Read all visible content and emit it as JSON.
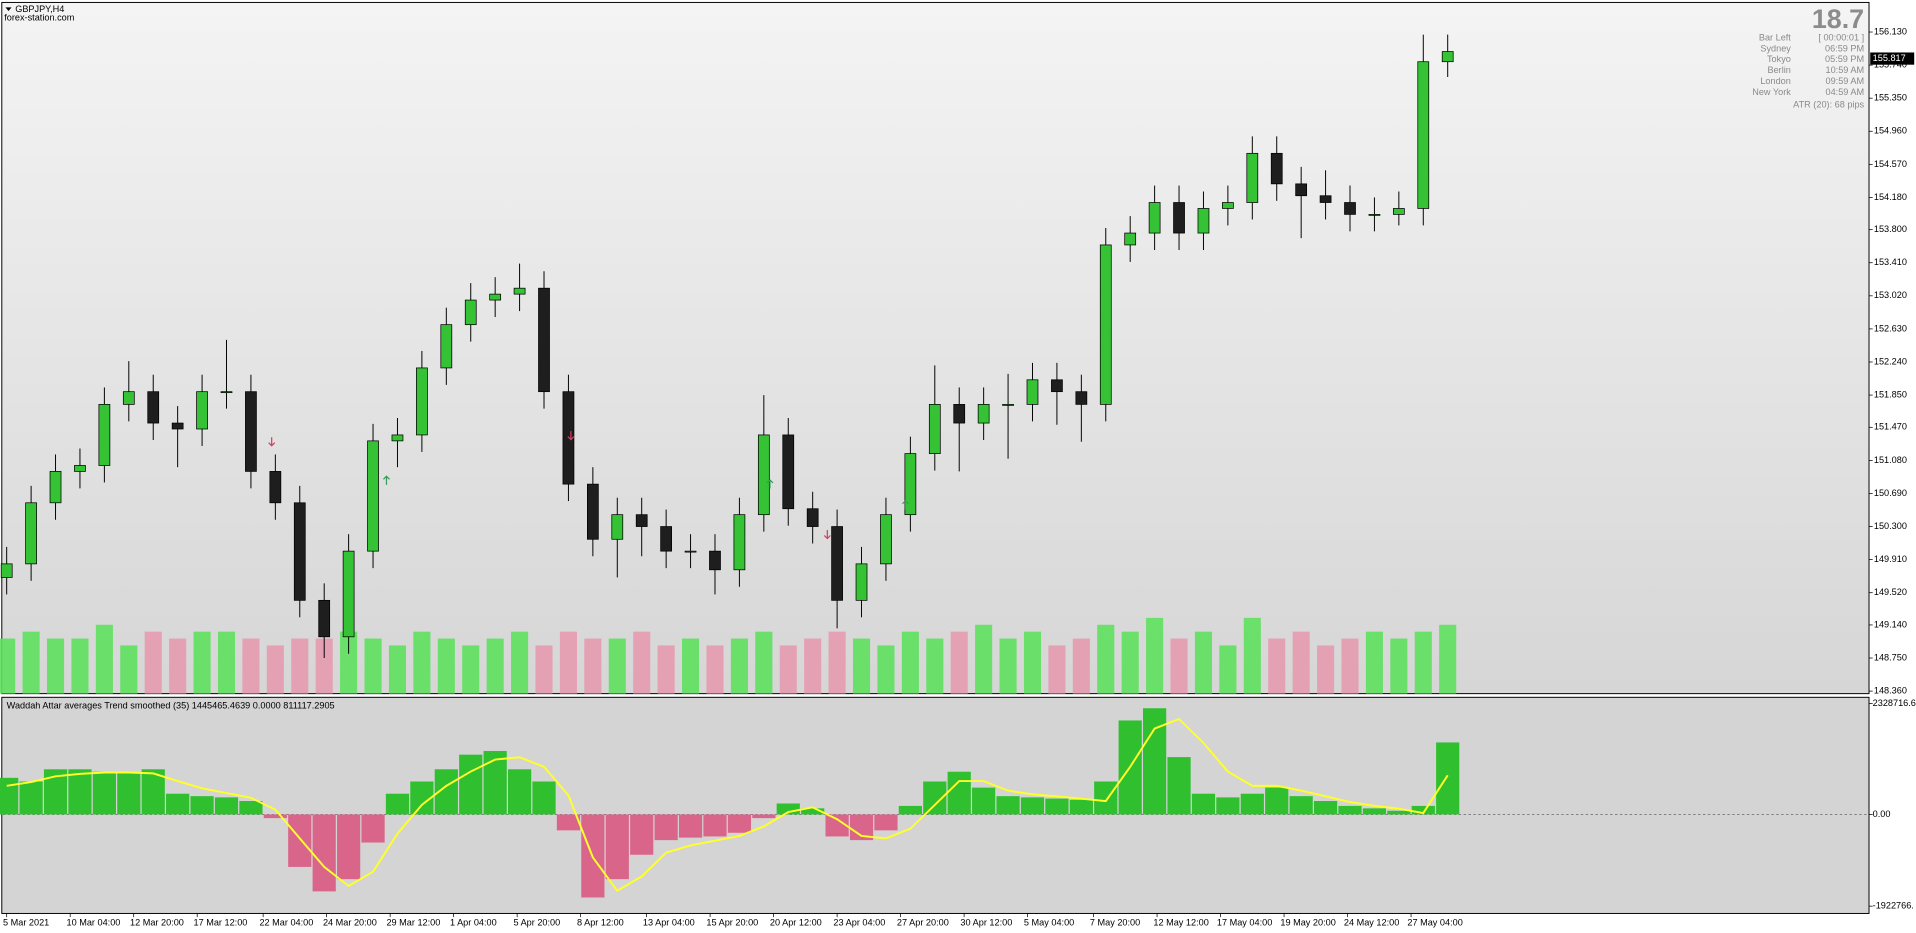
{
  "header": {
    "symbol": "GBPJPY,H4",
    "source": "forex-station.com"
  },
  "info_panel": {
    "spread": "18.7",
    "rows": [
      [
        "Bar Left",
        "[ 00:00:01 ]"
      ],
      [
        "Sydney",
        "06:59 PM"
      ],
      [
        "Tokyo",
        "05:59 PM"
      ],
      [
        "Berlin",
        "10:59 AM"
      ],
      [
        "London",
        "09:59 AM"
      ],
      [
        "New York",
        "04:59 AM"
      ]
    ],
    "atr": "ATR (20): 68 pips"
  },
  "chart_data": [
    {
      "type": "candlestick",
      "x": [
        0,
        1,
        2,
        3,
        4,
        5,
        6,
        7,
        8,
        9,
        10,
        11,
        12,
        13,
        14,
        15,
        16,
        17,
        18,
        19,
        20,
        21,
        22,
        23,
        24,
        25,
        26,
        27,
        28,
        29,
        30,
        31,
        32,
        33,
        34,
        35,
        36,
        37,
        38,
        39,
        40,
        41,
        42,
        43,
        44,
        45,
        46,
        47,
        48,
        49,
        50,
        51,
        52,
        53,
        54,
        55,
        56,
        57,
        58,
        59
      ],
      "open": [
        149.7,
        149.86,
        150.58,
        150.95,
        151.02,
        151.74,
        151.89,
        151.52,
        151.45,
        151.89,
        151.89,
        150.95,
        150.58,
        149.43,
        149.0,
        150.01,
        151.31,
        151.38,
        152.17,
        152.68,
        152.97,
        153.04,
        153.11,
        151.89,
        150.8,
        150.15,
        150.44,
        150.3,
        150.01,
        150.01,
        149.79,
        150.44,
        151.38,
        150.51,
        150.3,
        149.43,
        149.86,
        150.44,
        151.16,
        151.74,
        151.52,
        151.74,
        151.74,
        152.03,
        151.89,
        151.74,
        153.62,
        153.76,
        154.12,
        153.76,
        154.05,
        154.12,
        154.7,
        154.34,
        154.2,
        154.12,
        153.98,
        153.98,
        154.05,
        155.78
      ],
      "high": [
        150.06,
        150.78,
        151.15,
        151.22,
        151.94,
        152.25,
        152.09,
        151.72,
        152.09,
        152.5,
        152.09,
        151.15,
        150.78,
        149.63,
        150.21,
        151.51,
        151.58,
        152.37,
        152.88,
        153.17,
        153.24,
        153.4,
        153.31,
        152.09,
        151.0,
        150.64,
        150.64,
        150.5,
        150.21,
        150.21,
        150.64,
        151.85,
        151.58,
        150.71,
        150.5,
        150.06,
        150.64,
        151.36,
        152.2,
        151.94,
        151.94,
        152.1,
        152.23,
        152.23,
        152.09,
        153.82,
        153.96,
        154.32,
        154.32,
        154.25,
        154.32,
        154.9,
        154.9,
        154.54,
        154.5,
        154.32,
        154.18,
        154.25,
        156.1,
        156.1
      ],
      "low": [
        149.5,
        149.66,
        150.38,
        150.75,
        150.82,
        151.54,
        151.32,
        151.0,
        151.25,
        151.69,
        150.75,
        150.38,
        149.23,
        148.75,
        148.8,
        149.81,
        151.0,
        151.18,
        151.97,
        152.48,
        152.77,
        152.84,
        151.69,
        150.6,
        149.95,
        149.7,
        149.95,
        149.81,
        149.81,
        149.5,
        149.59,
        150.24,
        150.31,
        150.1,
        149.1,
        149.23,
        149.66,
        150.24,
        150.96,
        150.95,
        151.32,
        151.1,
        151.54,
        151.5,
        151.3,
        151.54,
        153.42,
        153.56,
        153.56,
        153.56,
        153.85,
        153.92,
        154.14,
        153.7,
        153.92,
        153.78,
        153.78,
        153.85,
        153.85,
        155.6
      ],
      "close": [
        149.86,
        150.58,
        150.95,
        151.02,
        151.74,
        151.89,
        151.52,
        151.45,
        151.89,
        151.89,
        150.95,
        150.58,
        149.43,
        149.0,
        150.01,
        151.31,
        151.38,
        152.17,
        152.68,
        152.97,
        153.04,
        153.11,
        151.89,
        150.8,
        150.15,
        150.44,
        150.3,
        150.01,
        150.01,
        149.79,
        150.44,
        151.38,
        150.51,
        150.3,
        149.43,
        149.86,
        150.44,
        151.16,
        151.74,
        151.52,
        151.74,
        151.74,
        152.03,
        151.89,
        151.74,
        153.62,
        153.76,
        154.12,
        153.76,
        154.05,
        154.12,
        154.7,
        154.34,
        154.2,
        154.12,
        153.98,
        153.98,
        154.05,
        155.78,
        155.9
      ],
      "volume": [
        8,
        9,
        8,
        8,
        10,
        7,
        9,
        8,
        9,
        9,
        8,
        7,
        8,
        8,
        9,
        8,
        7,
        9,
        8,
        7,
        8,
        9,
        7,
        9,
        8,
        8,
        9,
        7,
        8,
        7,
        8,
        9,
        7,
        8,
        9,
        8,
        7,
        9,
        8,
        9,
        10,
        8,
        9,
        7,
        8,
        10,
        9,
        11,
        8,
        9,
        7,
        11,
        8,
        9,
        7,
        8,
        9,
        8,
        9,
        10
      ],
      "up_color": "#35c335",
      "down_color": "#1e1e1e",
      "volume_up_color": "#5ee05e",
      "volume_down_color": "#e79bb0",
      "xlim": [
        -0.15,
        76.25
      ],
      "ylim": [
        148.33,
        156.45
      ],
      "y2lim": [
        0,
        100
      ],
      "yticks": [
        {
          "value": 156.13,
          "label": "156.130"
        },
        {
          "value": 155.74,
          "label": "155.740"
        },
        {
          "value": 155.35,
          "label": "155.350"
        },
        {
          "value": 154.96,
          "label": "154.960"
        },
        {
          "value": 154.57,
          "label": "154.570"
        },
        {
          "value": 154.18,
          "label": "154.180"
        },
        {
          "value": 153.8,
          "label": "153.800"
        },
        {
          "value": 153.41,
          "label": "153.410"
        },
        {
          "value": 153.02,
          "label": "153.020"
        },
        {
          "value": 152.63,
          "label": "152.630"
        },
        {
          "value": 152.24,
          "label": "152.240"
        },
        {
          "value": 151.85,
          "label": "151.850"
        },
        {
          "value": 151.47,
          "label": "151.470"
        },
        {
          "value": 151.08,
          "label": "151.080"
        },
        {
          "value": 150.69,
          "label": "150.690"
        },
        {
          "value": 150.3,
          "label": "150.300"
        },
        {
          "value": 149.91,
          "label": "149.910"
        },
        {
          "value": 149.52,
          "label": "149.520"
        },
        {
          "value": 149.14,
          "label": "149.140"
        },
        {
          "value": 148.75,
          "label": "148.750"
        },
        {
          "value": 148.36,
          "label": "148.360"
        }
      ],
      "last_price": 155.817,
      "grid": false
    },
    {
      "type": "histogram",
      "title": "Waddah Attar averages Trend smoothed  (35) 1445465.4639 0.0000 811117.2905",
      "x": [
        0,
        1,
        2,
        3,
        4,
        5,
        6,
        7,
        8,
        9,
        10,
        11,
        12,
        13,
        14,
        15,
        16,
        17,
        18,
        19,
        20,
        21,
        22,
        23,
        24,
        25,
        26,
        27,
        28,
        29,
        30,
        31,
        32,
        33,
        34,
        35,
        36,
        37,
        38,
        39,
        40,
        41,
        42,
        43,
        44,
        45,
        46,
        47,
        48,
        49,
        50,
        51,
        52,
        53,
        54,
        55,
        56,
        57,
        58,
        59
      ],
      "values": [
        768000,
        691000,
        947000,
        947000,
        896000,
        870000,
        947000,
        435000,
        384000,
        358000,
        282000,
        -77000,
        -1100000,
        -1613000,
        -1357000,
        -589000,
        435000,
        691000,
        947000,
        1254000,
        1331000,
        947000,
        691000,
        -333000,
        -1741000,
        -1357000,
        -845000,
        -538000,
        -486000,
        -461000,
        -384000,
        -77000,
        230000,
        128000,
        -461000,
        -538000,
        -333000,
        179000,
        691000,
        896000,
        563000,
        384000,
        358000,
        333000,
        307000,
        691000,
        1971000,
        2227000,
        1203000,
        435000,
        358000,
        435000,
        563000,
        384000,
        282000,
        179000,
        128000,
        77000,
        179000,
        1510000
      ],
      "signal": [
        600000,
        680000,
        800000,
        850000,
        880000,
        880000,
        860000,
        700000,
        550000,
        450000,
        350000,
        100000,
        -500000,
        -1100000,
        -1500000,
        -1200000,
        -400000,
        200000,
        600000,
        900000,
        1150000,
        1200000,
        1000000,
        400000,
        -900000,
        -1600000,
        -1300000,
        -800000,
        -650000,
        -550000,
        -450000,
        -250000,
        50000,
        150000,
        -100000,
        -450000,
        -500000,
        -300000,
        200000,
        700000,
        700000,
        500000,
        420000,
        380000,
        330000,
        280000,
        1000000,
        1800000,
        2000000,
        1500000,
        900000,
        600000,
        600000,
        500000,
        380000,
        260000,
        180000,
        120000,
        30000,
        820000
      ],
      "up_color": "#2fbf2f",
      "down_color": "#d9668a",
      "signal_color": "#ffff2a",
      "xlim": [
        -0.15,
        76.25
      ],
      "ylim": [
        -2076000,
        2431000
      ],
      "yticks": [
        2328716.6,
        {
          "value": 0,
          "label": "0.00"
        },
        {
          "value": -1922766,
          "label": "-1922766."
        }
      ],
      "xticks": [
        {
          "value": 0,
          "label": "5 Mar 2021"
        },
        {
          "value": 2.6,
          "label": "10 Mar 04:00"
        },
        {
          "value": 5.2,
          "label": "12 Mar 20:00"
        },
        {
          "value": 7.8,
          "label": "17 Mar 12:00"
        },
        {
          "value": 10.5,
          "label": "22 Mar 04:00"
        },
        {
          "value": 13.1,
          "label": "24 Mar 20:00"
        },
        {
          "value": 15.7,
          "label": "29 Mar 12:00"
        },
        {
          "value": 18.3,
          "label": "1 Apr 04:00"
        },
        {
          "value": 20.9,
          "label": "5 Apr 20:00"
        },
        {
          "value": 23.5,
          "label": "8 Apr 12:00"
        },
        {
          "value": 26.2,
          "label": "13 Apr 04:00"
        },
        {
          "value": 28.8,
          "label": "15 Apr 20:00"
        },
        {
          "value": 31.4,
          "label": "20 Apr 12:00"
        },
        {
          "value": 34,
          "label": "23 Apr 04:00"
        },
        {
          "value": 36.6,
          "label": "27 Apr 20:00"
        },
        {
          "value": 39.2,
          "label": "30 Apr 12:00"
        },
        {
          "value": 41.8,
          "label": "5 May 04:00"
        },
        {
          "value": 44.5,
          "label": "7 May 20:00"
        },
        {
          "value": 47.1,
          "label": "12 May 12:00"
        },
        {
          "value": 49.7,
          "label": "17 May 04:00"
        },
        {
          "value": 52.3,
          "label": "19 May 20:00"
        },
        {
          "value": 54.9,
          "label": "24 May 12:00"
        },
        {
          "value": 57.5,
          "label": "27 May 04:00"
        }
      ]
    }
  ]
}
